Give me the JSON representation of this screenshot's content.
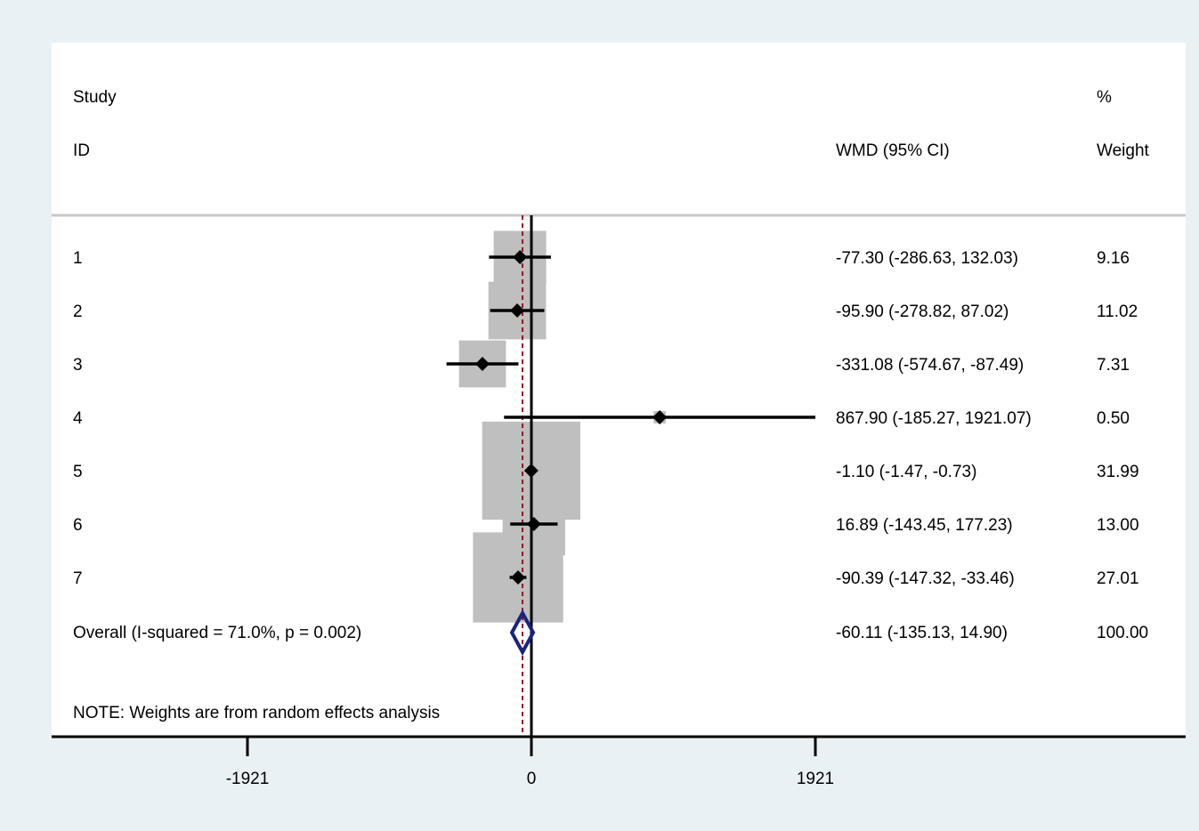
{
  "chart_data": {
    "type": "forest",
    "columns": {
      "study_header_line1": "Study",
      "study_header_line2": "ID",
      "effect_header": "WMD (95% CI)",
      "weight_header_line1": "%",
      "weight_header_line2": "Weight"
    },
    "studies": [
      {
        "id": "1",
        "wmd": -77.3,
        "lower": -286.63,
        "upper": 132.03,
        "weight": 9.16,
        "ci_text": "-77.30 (-286.63, 132.03)",
        "weight_text": "9.16"
      },
      {
        "id": "2",
        "wmd": -95.9,
        "lower": -278.82,
        "upper": 87.02,
        "weight": 11.02,
        "ci_text": "-95.90 (-278.82, 87.02)",
        "weight_text": "11.02"
      },
      {
        "id": "3",
        "wmd": -331.08,
        "lower": -574.67,
        "upper": -87.49,
        "weight": 7.31,
        "ci_text": "-331.08 (-574.67, -87.49)",
        "weight_text": "7.31"
      },
      {
        "id": "4",
        "wmd": 867.9,
        "lower": -185.27,
        "upper": 1921.07,
        "weight": 0.5,
        "ci_text": "867.90 (-185.27, 1921.07)",
        "weight_text": "0.50"
      },
      {
        "id": "5",
        "wmd": -1.1,
        "lower": -1.47,
        "upper": -0.73,
        "weight": 31.99,
        "ci_text": "-1.10 (-1.47, -0.73)",
        "weight_text": "31.99"
      },
      {
        "id": "6",
        "wmd": 16.89,
        "lower": -143.45,
        "upper": 177.23,
        "weight": 13.0,
        "ci_text": "16.89 (-143.45, 177.23)",
        "weight_text": "13.00"
      },
      {
        "id": "7",
        "wmd": -90.39,
        "lower": -147.32,
        "upper": -33.46,
        "weight": 27.01,
        "ci_text": "-90.39 (-147.32, -33.46)",
        "weight_text": "27.01"
      }
    ],
    "overall": {
      "label": "Overall  (I-squared = 71.0%, p = 0.002)",
      "wmd": -60.11,
      "lower": -135.13,
      "upper": 14.9,
      "weight": 100.0,
      "ci_text": "-60.11 (-135.13, 14.90)",
      "weight_text": "100.00"
    },
    "note": "NOTE: Weights are from random effects analysis",
    "x_ticks": [
      -1921,
      0,
      1921
    ],
    "x_tick_labels": [
      "-1921",
      "0",
      "1921"
    ],
    "xlim": [
      -1921,
      1921
    ],
    "colors": {
      "background": "#eaf1f4",
      "plot_area": "#ffffff",
      "weight_box": "#bfbfbf",
      "point": "#000000",
      "ci_line": "#000000",
      "overall_diamond": "#1a237e",
      "overall_line": "#8b1a2b",
      "header_rule": "#c8c8c8"
    }
  }
}
